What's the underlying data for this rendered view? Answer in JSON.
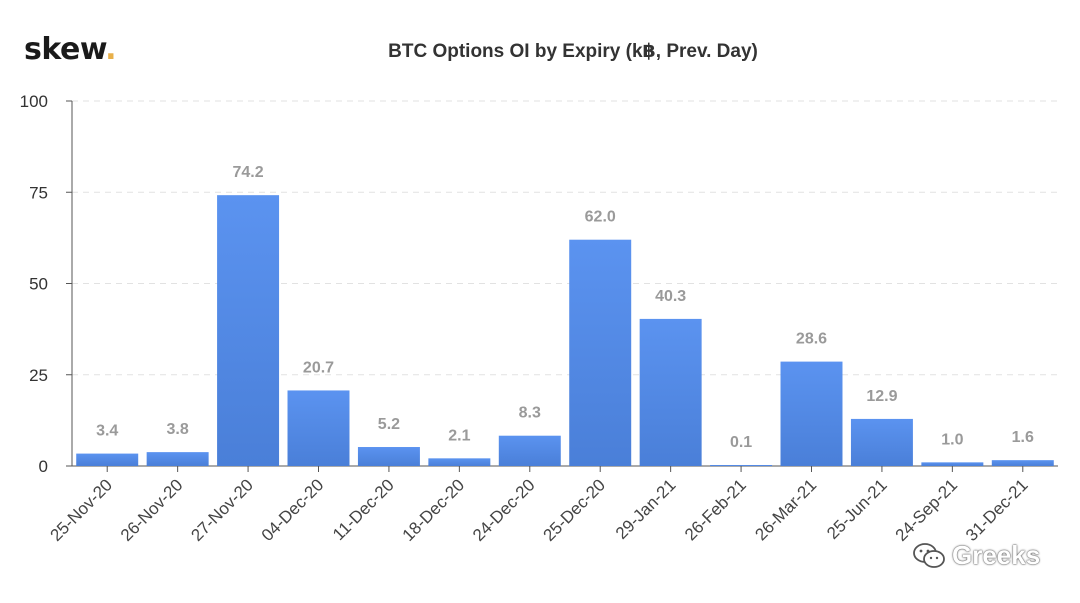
{
  "brand": {
    "logo_text": "skew",
    "logo_dot": ".",
    "accent": "#e8b04a"
  },
  "watermark": {
    "text": "Greeks"
  },
  "chart_data": {
    "type": "bar",
    "title": "BTC Options OI by Expiry (k฿, Prev. Day)",
    "xlabel": "",
    "ylabel": "",
    "ylim": [
      0,
      100
    ],
    "yticks": [
      0,
      25,
      50,
      75,
      100
    ],
    "grid": true,
    "bar_color": "#4f86e4",
    "categories": [
      "25-Nov-20",
      "26-Nov-20",
      "27-Nov-20",
      "04-Dec-20",
      "11-Dec-20",
      "18-Dec-20",
      "24-Dec-20",
      "25-Dec-20",
      "29-Jan-21",
      "26-Feb-21",
      "26-Mar-21",
      "25-Jun-21",
      "24-Sep-21",
      "31-Dec-21"
    ],
    "values": [
      3.4,
      3.8,
      74.2,
      20.7,
      5.2,
      2.1,
      8.3,
      62.0,
      40.3,
      0.1,
      28.6,
      12.9,
      1.0,
      1.6
    ],
    "data_labels": [
      "3.4",
      "3.8",
      "74.2",
      "20.7",
      "5.2",
      "2.1",
      "8.3",
      "62.0",
      "40.3",
      "0.1",
      "28.6",
      "12.9",
      "1.0",
      "1.6"
    ]
  }
}
